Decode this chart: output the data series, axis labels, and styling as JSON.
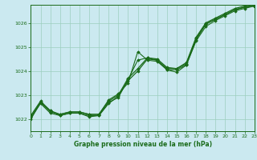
{
  "bg_color": "#cbe9f0",
  "plot_bg_color": "#cbe9f0",
  "grid_color": "#9dcfbe",
  "line_color": "#1a6b1a",
  "title": "Graphe pression niveau de la mer (hPa)",
  "xlim": [
    0,
    23
  ],
  "ylim": [
    1021.5,
    1026.75
  ],
  "yticks": [
    1022,
    1023,
    1024,
    1025,
    1026
  ],
  "xticks": [
    0,
    1,
    2,
    3,
    4,
    5,
    6,
    7,
    8,
    9,
    10,
    11,
    12,
    13,
    14,
    15,
    16,
    17,
    18,
    19,
    20,
    21,
    22,
    23
  ],
  "series_dotted": [
    [
      1022.1,
      1022.7,
      1022.3,
      1022.2,
      1022.3,
      1022.3,
      1022.2,
      1022.2,
      1022.8,
      1023.05,
      1023.5,
      1024.8,
      1024.45,
      1024.4,
      1024.05,
      1024.05,
      1024.25,
      1025.25,
      1025.85,
      1026.1,
      1026.3,
      1026.5,
      1026.6,
      1026.7
    ],
    [
      1022.05,
      1022.65,
      1022.25,
      1022.15,
      1022.25,
      1022.25,
      1022.15,
      1022.15,
      1022.7,
      1022.9,
      1023.65,
      1024.45,
      1024.55,
      1024.45,
      1024.05,
      1023.95,
      1024.25,
      1025.3,
      1025.95,
      1026.15,
      1026.35,
      1026.55,
      1026.65,
      1026.75
    ]
  ],
  "series_solid": [
    [
      1022.0,
      1022.7,
      1022.35,
      1022.15,
      1022.25,
      1022.25,
      1022.1,
      1022.15,
      1022.65,
      1022.95,
      1023.6,
      1024.0,
      1024.5,
      1024.45,
      1024.1,
      1024.1,
      1024.3,
      1025.35,
      1025.95,
      1026.15,
      1026.35,
      1026.55,
      1026.65,
      1026.7
    ],
    [
      1022.15,
      1022.75,
      1022.35,
      1022.2,
      1022.3,
      1022.3,
      1022.2,
      1022.2,
      1022.75,
      1023.0,
      1023.7,
      1024.1,
      1024.55,
      1024.5,
      1024.15,
      1024.1,
      1024.35,
      1025.4,
      1026.0,
      1026.2,
      1026.4,
      1026.6,
      1026.7,
      1026.75
    ]
  ]
}
